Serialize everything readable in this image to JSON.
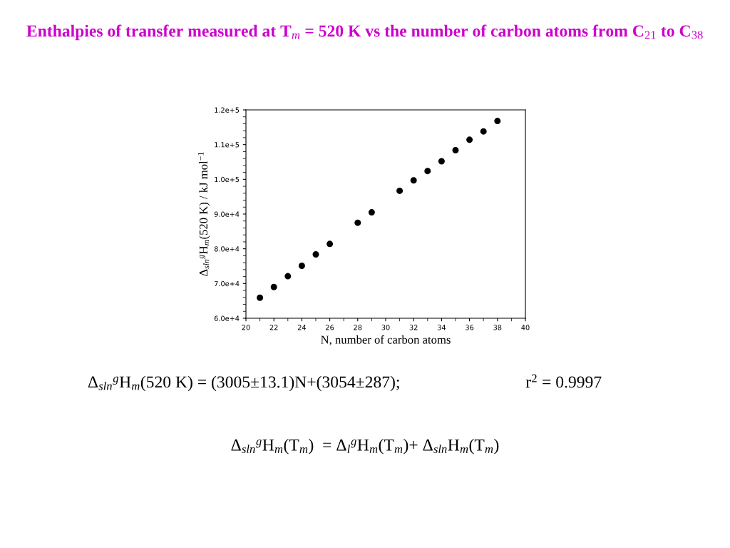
{
  "chart_data": {
    "type": "scatter",
    "title": "Enthalpies of transfer measured at T$_{m}$ = 520 K vs the number of carbon atoms from C$_{21}$ to C$_{38}$",
    "xlabel": "N, number of carbon atoms",
    "ylabel": "Δ$_{sln}$$^{g}$H$_{m}$(520 K) / kJ mol$^{−1}$",
    "x": [
      21,
      22,
      23,
      24,
      25,
      26,
      28,
      29,
      31,
      32,
      33,
      34,
      35,
      36,
      37,
      38
    ],
    "series": [
      {
        "color": "#000000",
        "values": [
          65900,
          69000,
          72100,
          75100,
          78400,
          81400,
          87500,
          90500,
          96700,
          99700,
          102400,
          105200,
          108400,
          111400,
          113800,
          116800
        ]
      }
    ],
    "marker": "circle",
    "xlim": [
      20,
      40
    ],
    "xticks": [
      20,
      22,
      24,
      26,
      28,
      30,
      32,
      34,
      36,
      38,
      40
    ],
    "ylim": [
      60000,
      120000
    ],
    "yticks": [
      {
        "value": 60000,
        "label": "6.0e+4"
      },
      {
        "value": 70000,
        "label": "7.0e+4"
      },
      {
        "value": 80000,
        "label": "8.0e+4"
      },
      {
        "value": 90000,
        "label": "9.0e+4"
      },
      {
        "value": 100000,
        "label": "1.0e+5"
      },
      {
        "value": 110000,
        "label": "1.1e+5"
      },
      {
        "value": 120000,
        "label": "1.2e+5"
      }
    ],
    "grid": false,
    "legend": false,
    "annotations": [
      "Δ$_{sln}$$^{g}$H$_{m}$(520 K) = (3005±13.1)N+(3054±287);",
      "r$^{2}$ = 0.9997",
      "Δ$_{sln}$$^{g}$H$_{m}$(T$_{m}$)  = Δ$_{l}$$^{g}$H$_{m}$(T$_{m}$)+ Δ$_{sln}$H$_{m}$(T$_{m}$)"
    ]
  }
}
